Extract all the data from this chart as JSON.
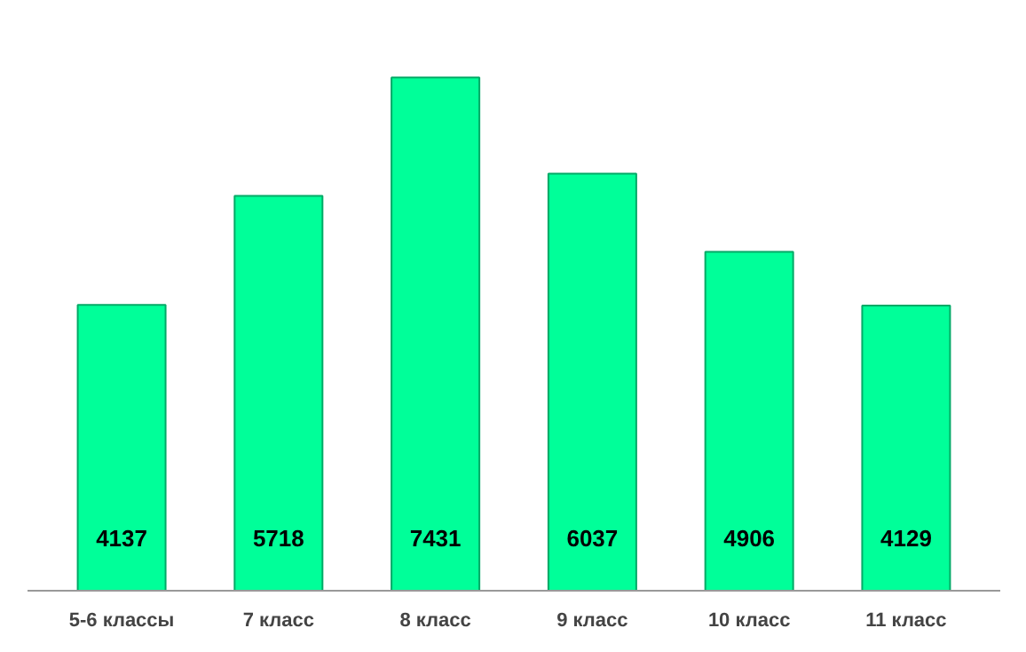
{
  "chart_data": {
    "type": "bar",
    "categories": [
      "5-6 классы",
      "7 класс",
      "8 класс",
      "9 класс",
      "10 класс",
      "11 класс"
    ],
    "values": [
      4137,
      5718,
      7431,
      6037,
      4906,
      4129
    ],
    "color": "#00ff99",
    "data_labels": true,
    "grid": false
  }
}
